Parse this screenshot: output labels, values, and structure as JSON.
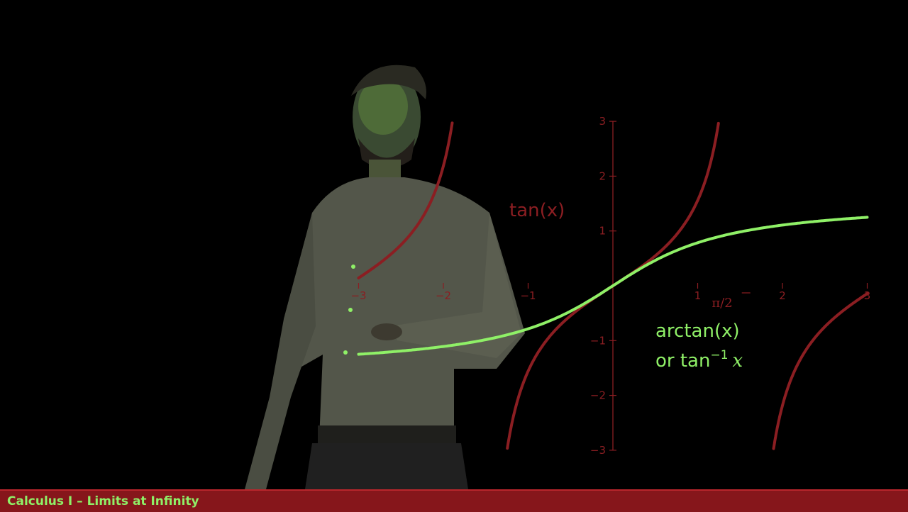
{
  "footer": {
    "course_title": "Calculus I – Limits at Infinity"
  },
  "colors": {
    "tan_curve": "#8b1e22",
    "arctan_curve": "#8ff067",
    "axis": "#8b1e22",
    "footer_bg": "#86161b",
    "background": "#000000"
  },
  "chart_data": {
    "type": "line",
    "xlim": [
      -3,
      3
    ],
    "ylim": [
      -3,
      3
    ],
    "x_ticks": [
      "−3",
      "−2",
      "−1",
      "1",
      "2",
      "3"
    ],
    "y_ticks": [
      "3",
      "2",
      "1",
      "−1",
      "−2",
      "−3"
    ],
    "series": [
      {
        "name": "tan(x)",
        "function": "tan",
        "color": "#8b1e22"
      },
      {
        "name": "arctan(x)",
        "function": "atan",
        "color": "#8ff067"
      }
    ],
    "annotations": {
      "tan_label": "tan(x)",
      "arctan_label_line1": "arctan(x)",
      "arctan_label_line2_prefix": "or tan",
      "arctan_label_superscript": "−1",
      "arctan_label_var": "x",
      "pi_over_2_mark": "π/2"
    },
    "grid": false
  }
}
